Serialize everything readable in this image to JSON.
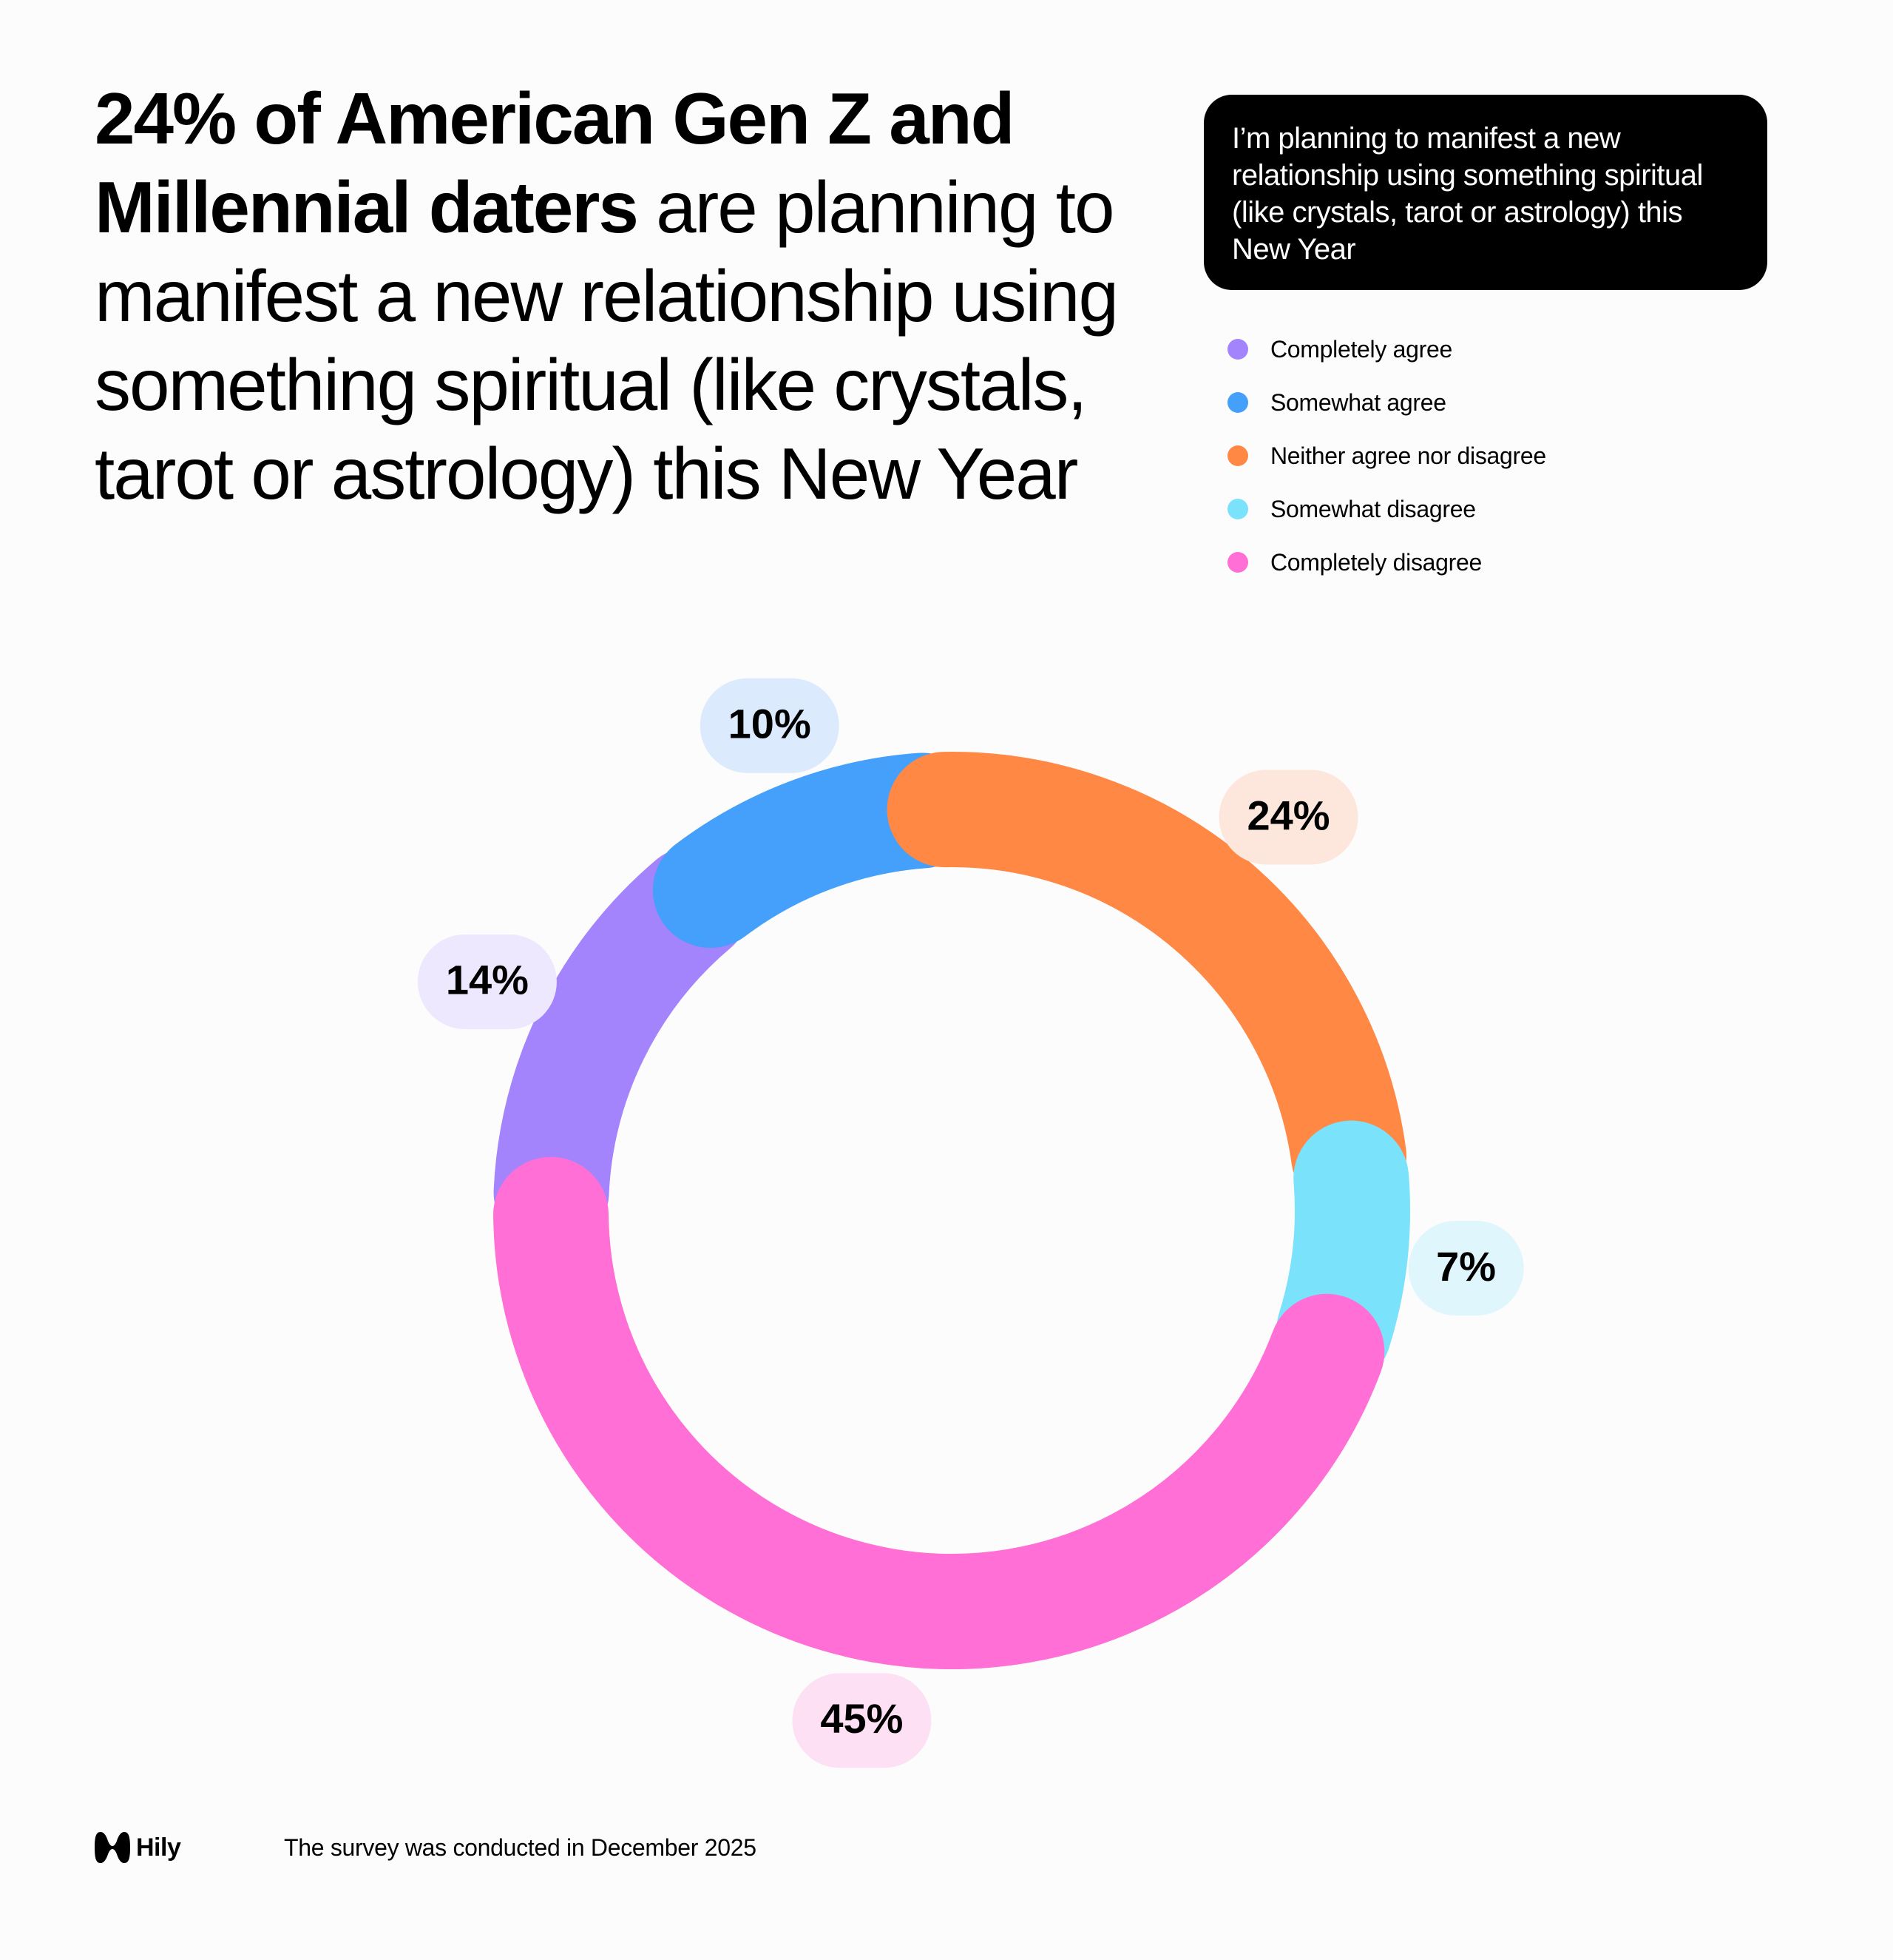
{
  "headline": {
    "bold": "24% of American Gen Z and Millennial daters",
    "regular": " are planning to manifest a new relationship using something spiritual (like crystals, tarot or astrology) this New Year"
  },
  "question": "I’m planning to manifest a new relationship using something spiritual (like crystals, tarot or astrology) this New Year",
  "colors": {
    "background": "#fcfcfd",
    "text": "#000000",
    "question_box": "#000000"
  },
  "chart_data": {
    "type": "pie",
    "subtype": "donut",
    "title": "I’m planning to manifest a new relationship using something spiritual (like crystals, tarot or astrology) this New Year",
    "legend_position": "top-right",
    "series": [
      {
        "name": "Completely agree",
        "value": 14,
        "label": "14%",
        "color": "#a484fc",
        "label_bg": "#ede8fd"
      },
      {
        "name": "Somewhat agree",
        "value": 10,
        "label": "10%",
        "color": "#44a0fa",
        "label_bg": "#dbeafc"
      },
      {
        "name": "Neither agree nor disagree",
        "value": 24,
        "label": "24%",
        "color": "#ff8844",
        "label_bg": "#fde6db"
      },
      {
        "name": "Somewhat disagree",
        "value": 7,
        "label": "7%",
        "color": "#7be2fc",
        "label_bg": "#e0f6fd"
      },
      {
        "name": "Completely disagree",
        "value": 45,
        "label": "45%",
        "color": "#ff6fd6",
        "label_bg": "#fde0f3"
      }
    ]
  },
  "footer": {
    "brand": "Hily",
    "icon": "hily-logo-icon",
    "note": "The survey was conducted in December 2025"
  }
}
